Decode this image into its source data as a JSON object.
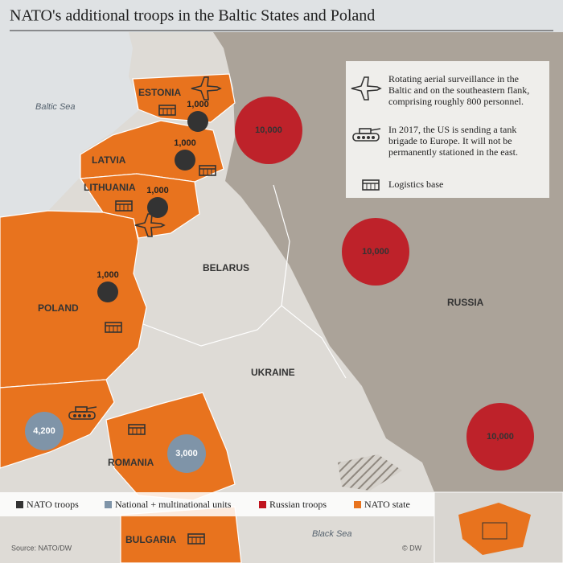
{
  "header": {
    "title": "NATO's additional troops in the Baltic States and Poland"
  },
  "seas": [
    "Baltic Sea",
    "Black Sea"
  ],
  "countries": [
    "ESTONIA",
    "LATVIA",
    "LITHUANIA",
    "POLAND",
    "BELARUS",
    "UKRAINE",
    "RUSSIA",
    "ROMANIA",
    "BULGARIA"
  ],
  "markers": {
    "nato_troops": [
      "1,000",
      "1,000",
      "1,000",
      "1,000"
    ],
    "national_units": [
      "4,200",
      "3,000"
    ],
    "russian_troops": [
      "10,000",
      "10,000",
      "10,000"
    ]
  },
  "legend": {
    "aerial": "Rotating aerial surveillance in the Baltic and on the southeastern flank, comprising roughly 800 personnel.",
    "tank": "In 2017, the US is sending a tank brigade to Europe. It will not be permanently stationed in the east.",
    "logistics": "Logistics base"
  },
  "key": [
    "NATO troops",
    "National + multinational units",
    "Russian troops",
    "NATO state"
  ],
  "footer": {
    "source": "Source: NATO/DW",
    "credit": "© DW"
  }
}
